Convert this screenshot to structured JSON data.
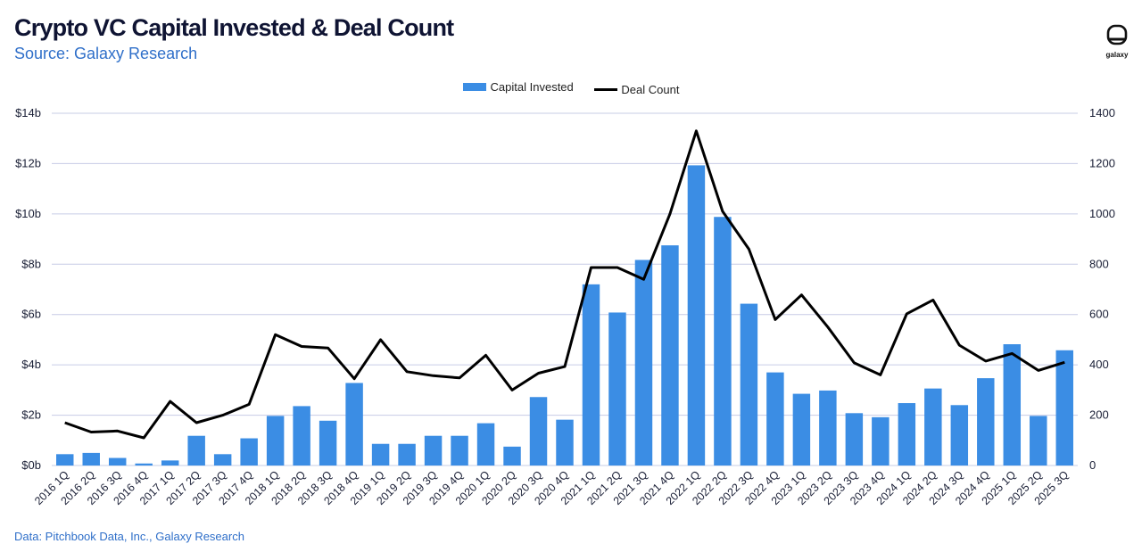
{
  "header": {
    "title": "Crypto VC Capital Invested & Deal Count",
    "subtitle": "Source: Galaxy Research"
  },
  "brand": {
    "logo_text": "galaxy"
  },
  "footer": {
    "text": "Data: Pitchbook Data, Inc., Galaxy Research"
  },
  "colors": {
    "bar": "#3b8de4",
    "line": "#000000",
    "grid": "#c7cce6",
    "axis_text": "#1a1f36"
  },
  "chart_data": {
    "type": "bar",
    "title": "Crypto VC Capital Invested & Deal Count",
    "legend_position": "top-center",
    "grid": true,
    "categories": [
      "2016 1Q",
      "2016 2Q",
      "2016 3Q",
      "2016 4Q",
      "2017 1Q",
      "2017 2Q",
      "2017 3Q",
      "2017 4Q",
      "2018 1Q",
      "2018 2Q",
      "2018 3Q",
      "2018 4Q",
      "2019 1Q",
      "2019 2Q",
      "2019 3Q",
      "2019 4Q",
      "2020 1Q",
      "2020 2Q",
      "2020 3Q",
      "2020 4Q",
      "2021 1Q",
      "2021 2Q",
      "2021 3Q",
      "2021 4Q",
      "2022 1Q",
      "2022 2Q",
      "2022 3Q",
      "2022 4Q",
      "2023 1Q",
      "2023 2Q",
      "2023 3Q",
      "2023 4Q",
      "2024 1Q",
      "2024 2Q",
      "2024 3Q",
      "2024 4Q",
      "2025 1Q",
      "2025 2Q",
      "2025 3Q"
    ],
    "series": [
      {
        "name": "Capital Invested",
        "type": "bar",
        "axis": "left",
        "values": [
          0.45,
          0.5,
          0.3,
          0.08,
          0.2,
          1.18,
          0.45,
          1.08,
          1.97,
          2.36,
          1.78,
          3.28,
          0.86,
          0.86,
          1.18,
          1.18,
          1.68,
          0.75,
          2.72,
          1.82,
          7.2,
          6.08,
          8.17,
          8.75,
          11.93,
          9.88,
          6.43,
          3.7,
          2.85,
          2.98,
          2.08,
          1.92,
          2.48,
          3.06,
          2.4,
          3.47,
          4.82,
          1.97,
          4.58
        ]
      },
      {
        "name": "Deal Count",
        "type": "line",
        "axis": "right",
        "values": [
          170,
          133,
          137,
          110,
          255,
          170,
          200,
          243,
          520,
          473,
          467,
          345,
          500,
          373,
          357,
          348,
          438,
          300,
          367,
          393,
          787,
          787,
          740,
          1000,
          1330,
          1010,
          860,
          580,
          678,
          550,
          408,
          360,
          603,
          658,
          478,
          415,
          445,
          378,
          410
        ]
      }
    ],
    "y_left": {
      "ylim": [
        0,
        14
      ],
      "ticks": [
        "$0b",
        "$2b",
        "$4b",
        "$6b",
        "$8b",
        "$10b",
        "$12b",
        "$14b"
      ]
    },
    "y_right": {
      "ylim": [
        0,
        1400
      ],
      "ticks": [
        "0",
        "200",
        "400",
        "600",
        "800",
        "1000",
        "1200",
        "1400"
      ]
    }
  }
}
